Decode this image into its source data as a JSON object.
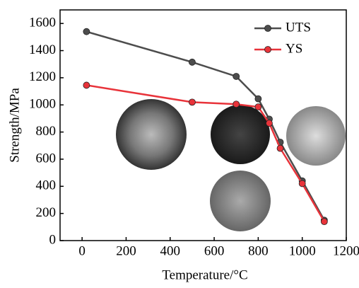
{
  "chart_data": {
    "type": "line",
    "x_label": "Temperature/°C",
    "y_label": "Strength/MPa",
    "xlim": [
      -100,
      1200
    ],
    "xticks": [
      0,
      200,
      400,
      600,
      800,
      1000,
      1200
    ],
    "ylim": [
      0,
      1700
    ],
    "yticks": [
      0,
      200,
      400,
      600,
      800,
      1000,
      1200,
      1400,
      1600
    ],
    "legend": "upper right",
    "series": [
      {
        "name": "UTS",
        "color": "#4d4d4d",
        "x": [
          20,
          500,
          700,
          800,
          850,
          900,
          1000,
          1100
        ],
        "values": [
          1540,
          1315,
          1210,
          1045,
          895,
          725,
          440,
          150
        ]
      },
      {
        "name": "YS",
        "color": "#e8333a",
        "x": [
          20,
          500,
          700,
          800,
          850,
          900,
          1000,
          1100
        ],
        "values": [
          1145,
          1020,
          1005,
          985,
          865,
          680,
          420,
          140
        ]
      }
    ]
  }
}
